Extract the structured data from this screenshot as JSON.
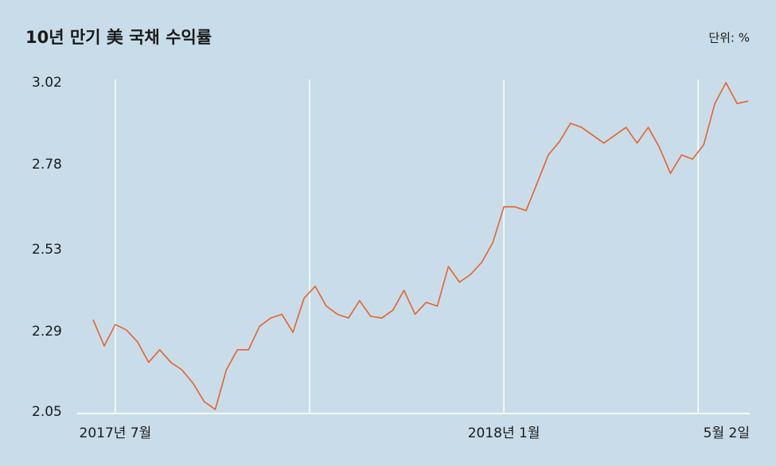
{
  "chart_data": {
    "type": "line",
    "title": "10년 만기 美 국채 수익률",
    "unit_label": "단위: %",
    "categories": [
      null,
      null,
      "2017년 7월",
      null,
      null,
      null,
      null,
      null,
      null,
      null,
      null,
      null,
      null,
      null,
      null,
      null,
      null,
      null,
      null,
      null,
      null,
      null,
      null,
      null,
      null,
      null,
      null,
      null,
      null,
      null,
      null,
      null,
      null,
      null,
      null,
      null,
      null,
      "2018년 1월",
      null,
      null,
      null,
      null,
      null,
      null,
      null,
      null,
      null,
      null,
      null,
      null,
      null,
      null,
      null,
      null,
      null,
      null,
      null,
      null,
      null,
      "5월 2일"
    ],
    "values": [
      2.325,
      2.248,
      2.311,
      2.295,
      2.26,
      2.2,
      2.237,
      2.2,
      2.178,
      2.139,
      2.085,
      2.062,
      2.178,
      2.237,
      2.237,
      2.306,
      2.33,
      2.341,
      2.288,
      2.388,
      2.423,
      2.365,
      2.341,
      2.33,
      2.381,
      2.335,
      2.33,
      2.353,
      2.411,
      2.341,
      2.376,
      2.365,
      2.481,
      2.435,
      2.458,
      2.493,
      2.551,
      2.656,
      2.656,
      2.645,
      2.726,
      2.808,
      2.847,
      2.901,
      2.889,
      2.866,
      2.843,
      2.866,
      2.889,
      2.843,
      2.889,
      2.831,
      2.754,
      2.808,
      2.796,
      2.838,
      2.959,
      3.02,
      2.959,
      2.966
    ],
    "color": "#e8622a",
    "ylim": [
      2.05,
      3.02
    ],
    "yticks": [
      {
        "value": 2.05,
        "label": "2.05"
      },
      2.29,
      2.53,
      2.78,
      3.02
    ],
    "grid": true
  }
}
